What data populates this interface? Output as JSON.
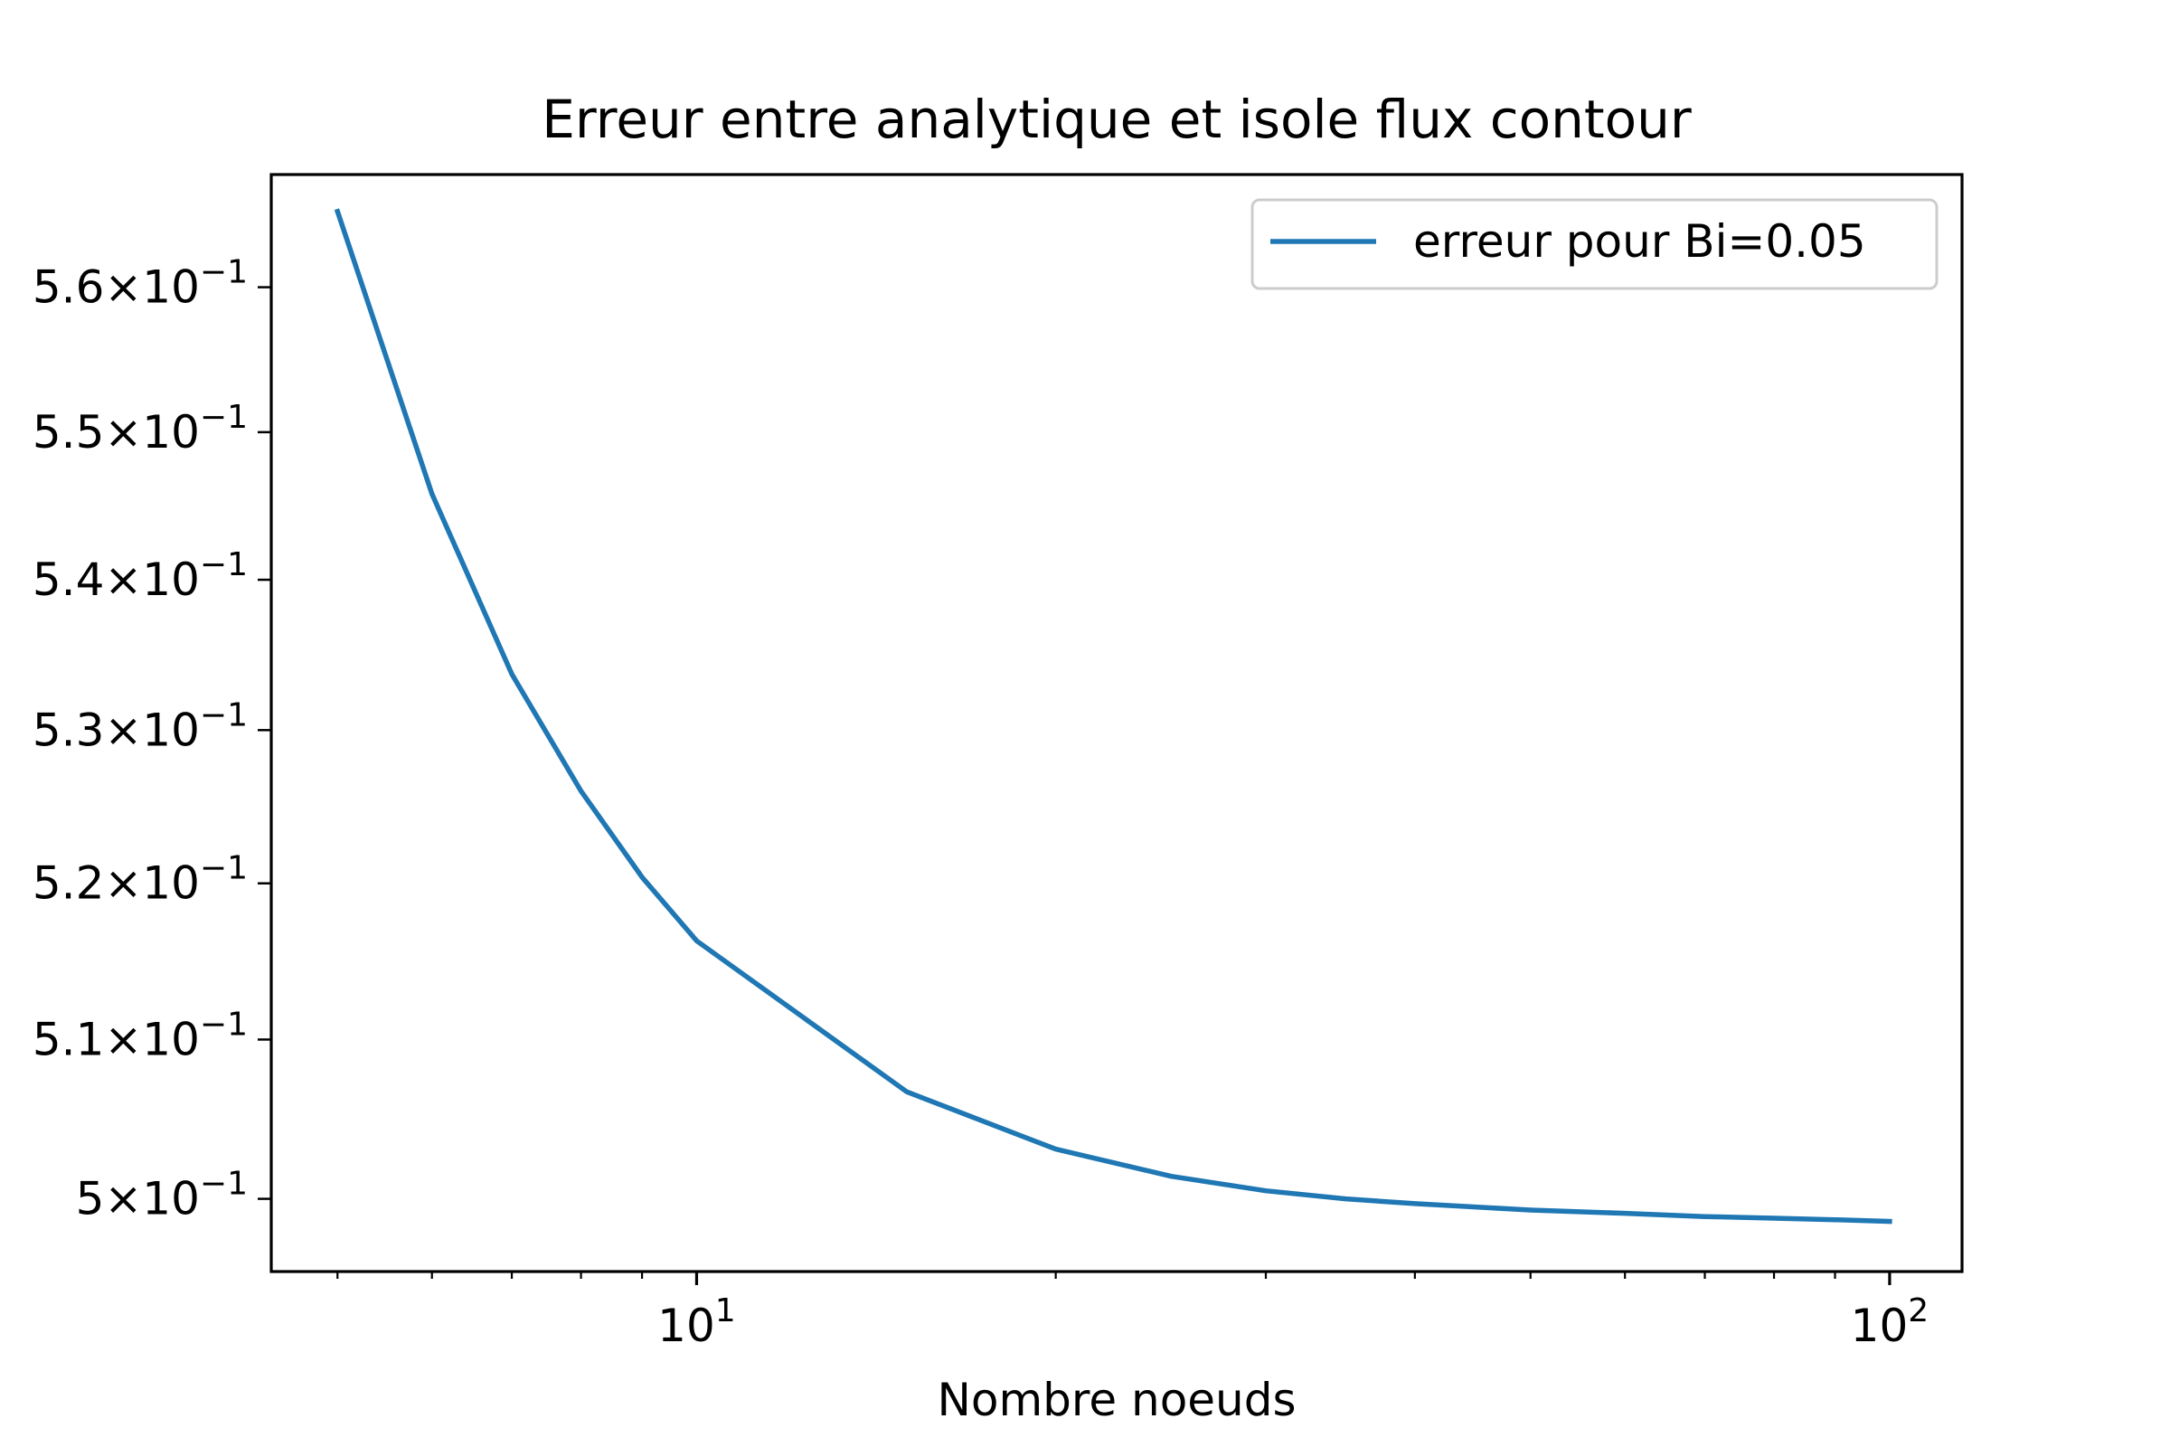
{
  "chart_data": {
    "type": "line",
    "title": "Erreur entre analytique et isole flux contour",
    "xlabel": "Nombre noeuds",
    "ylabel": "",
    "xscale": "log",
    "yscale": "log",
    "xlim": [
      4.4,
      115
    ],
    "ylim": [
      0.4955,
      0.5679
    ],
    "grid": false,
    "legend_position": "upper right",
    "xticks": [
      {
        "value": 10,
        "base": "10",
        "exp": "1"
      },
      {
        "value": 100,
        "base": "10",
        "exp": "2"
      }
    ],
    "yticks": [
      {
        "value": 0.5,
        "mant": "5",
        "base": "10",
        "exp": "−1"
      },
      {
        "value": 0.51,
        "mant": "5.1",
        "base": "10",
        "exp": "−1"
      },
      {
        "value": 0.52,
        "mant": "5.2",
        "base": "10",
        "exp": "−1"
      },
      {
        "value": 0.53,
        "mant": "5.3",
        "base": "10",
        "exp": "−1"
      },
      {
        "value": 0.54,
        "mant": "5.4",
        "base": "10",
        "exp": "−1"
      },
      {
        "value": 0.55,
        "mant": "5.5",
        "base": "10",
        "exp": "−1"
      },
      {
        "value": 0.56,
        "mant": "5.6",
        "base": "10",
        "exp": "−1"
      }
    ],
    "series": [
      {
        "name": "erreur pour Bi=0.05",
        "color": "#1f77b4",
        "x": [
          5,
          6,
          7,
          8,
          9,
          10,
          15,
          20,
          25,
          30,
          35,
          40,
          50,
          60,
          70,
          80,
          90,
          100
        ],
        "y": [
          0.5653,
          0.5458,
          0.5337,
          0.526,
          0.5204,
          0.5163,
          0.5067,
          0.5031,
          0.5014,
          0.5005,
          0.5,
          0.4997,
          0.4993,
          0.4991,
          0.4989,
          0.4988,
          0.4987,
          0.4986
        ]
      }
    ]
  }
}
